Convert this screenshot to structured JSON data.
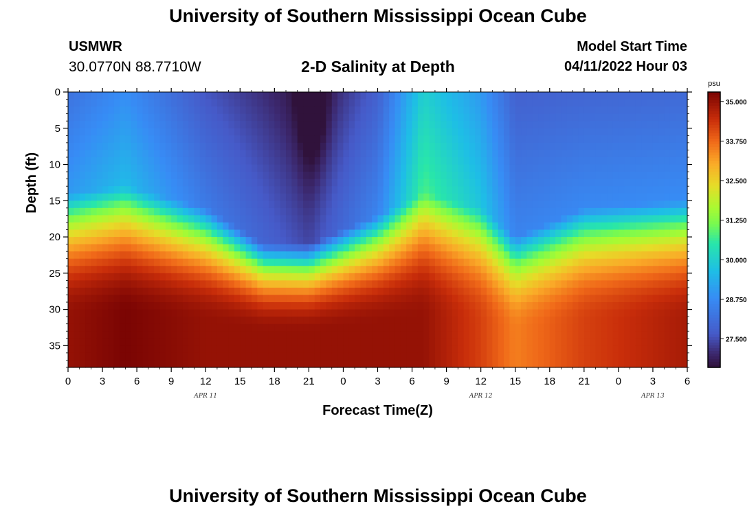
{
  "header": {
    "title": "University of Southern Mississippi Ocean Cube",
    "station": "USMWR",
    "coords": "30.0770N  88.7710W",
    "subtitle": "2-D Salinity at Depth",
    "model_start_label": "Model Start Time",
    "model_start_value": "04/11/2022 Hour 03"
  },
  "footer": {
    "title": "University of Southern Mississippi Ocean Cube"
  },
  "chart_data": {
    "type": "heatmap",
    "title": "2-D Salinity at Depth",
    "xlabel": "Forecast Time(Z)",
    "ylabel": "Depth (ft)",
    "x_tick_labels": [
      "0",
      "3",
      "6",
      "9",
      "12",
      "15",
      "18",
      "21",
      "0",
      "3",
      "6",
      "9",
      "12",
      "15",
      "18",
      "21",
      "0",
      "3",
      "6"
    ],
    "x_range_hours": [
      0,
      54
    ],
    "date_labels": [
      {
        "label": "APR 11",
        "hour": 12
      },
      {
        "label": "APR 12",
        "hour": 36
      },
      {
        "label": "APR 13",
        "hour": 51
      }
    ],
    "y_ticks": [
      0,
      5,
      10,
      15,
      20,
      25,
      30,
      35
    ],
    "ylim": [
      0,
      38
    ],
    "y_inverted": true,
    "colorbar": {
      "unit": "psu",
      "ticks": [
        35.0,
        33.75,
        32.5,
        31.25,
        30.0,
        28.75,
        27.5
      ],
      "tick_labels": [
        "35.000",
        "33.750",
        "32.500",
        "31.250",
        "30.000",
        "28.750",
        "27.500"
      ],
      "range": [
        26.6,
        35.3
      ],
      "colormap": "turbo"
    },
    "approx_structure": {
      "description_hours_vs_depth_psu": [
        {
          "hour": 0,
          "surface": 28.2,
          "interface_depth_ft": 20,
          "bottom": 35.0
        },
        {
          "hour": 5,
          "surface": 28.8,
          "interface_depth_ft": 19,
          "bottom": 35.3
        },
        {
          "hour": 12,
          "surface": 27.6,
          "interface_depth_ft": 22,
          "bottom": 35.0
        },
        {
          "hour": 17,
          "surface": 27.1,
          "interface_depth_ft": 27,
          "bottom": 35.0
        },
        {
          "hour": 21,
          "surface": 26.6,
          "interface_depth_ft": 27,
          "bottom": 35.0
        },
        {
          "hour": 27,
          "surface": 27.8,
          "interface_depth_ft": 23,
          "bottom": 35.0
        },
        {
          "hour": 31,
          "surface": 30.0,
          "interface_depth_ft": 20,
          "bottom": 35.0
        },
        {
          "hour": 36,
          "surface": 29.0,
          "interface_depth_ft": 22,
          "bottom": 34.2
        },
        {
          "hour": 39,
          "surface": 27.8,
          "interface_depth_ft": 26,
          "bottom": 33.5
        },
        {
          "hour": 45,
          "surface": 27.9,
          "interface_depth_ft": 22,
          "bottom": 34.2
        },
        {
          "hour": 54,
          "surface": 28.0,
          "interface_depth_ft": 21,
          "bottom": 34.8
        }
      ]
    }
  }
}
